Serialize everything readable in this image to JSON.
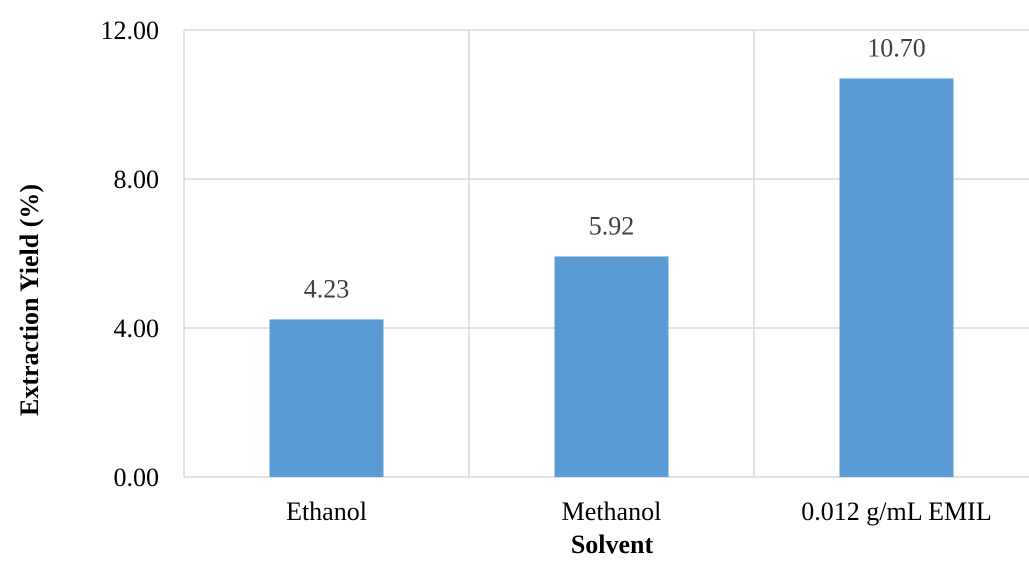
{
  "chart_data": {
    "type": "bar",
    "categories": [
      "Ethanol",
      "Methanol",
      "0.012 g/mL EMIL"
    ],
    "values": [
      4.23,
      5.92,
      10.7
    ],
    "data_labels": [
      "4.23",
      "5.92",
      "10.70"
    ],
    "title": "",
    "xlabel": "Solvent",
    "ylabel": "Extraction Yield (%)",
    "ylim": [
      0,
      12
    ],
    "yticks": [
      0,
      4,
      8,
      12
    ],
    "ytick_labels": [
      "0.00",
      "4.00",
      "8.00",
      "12.00"
    ],
    "grid": true,
    "bar_color": "#5B9BD5",
    "grid_color": "#D9D9D9",
    "data_label_color": "#404040"
  }
}
